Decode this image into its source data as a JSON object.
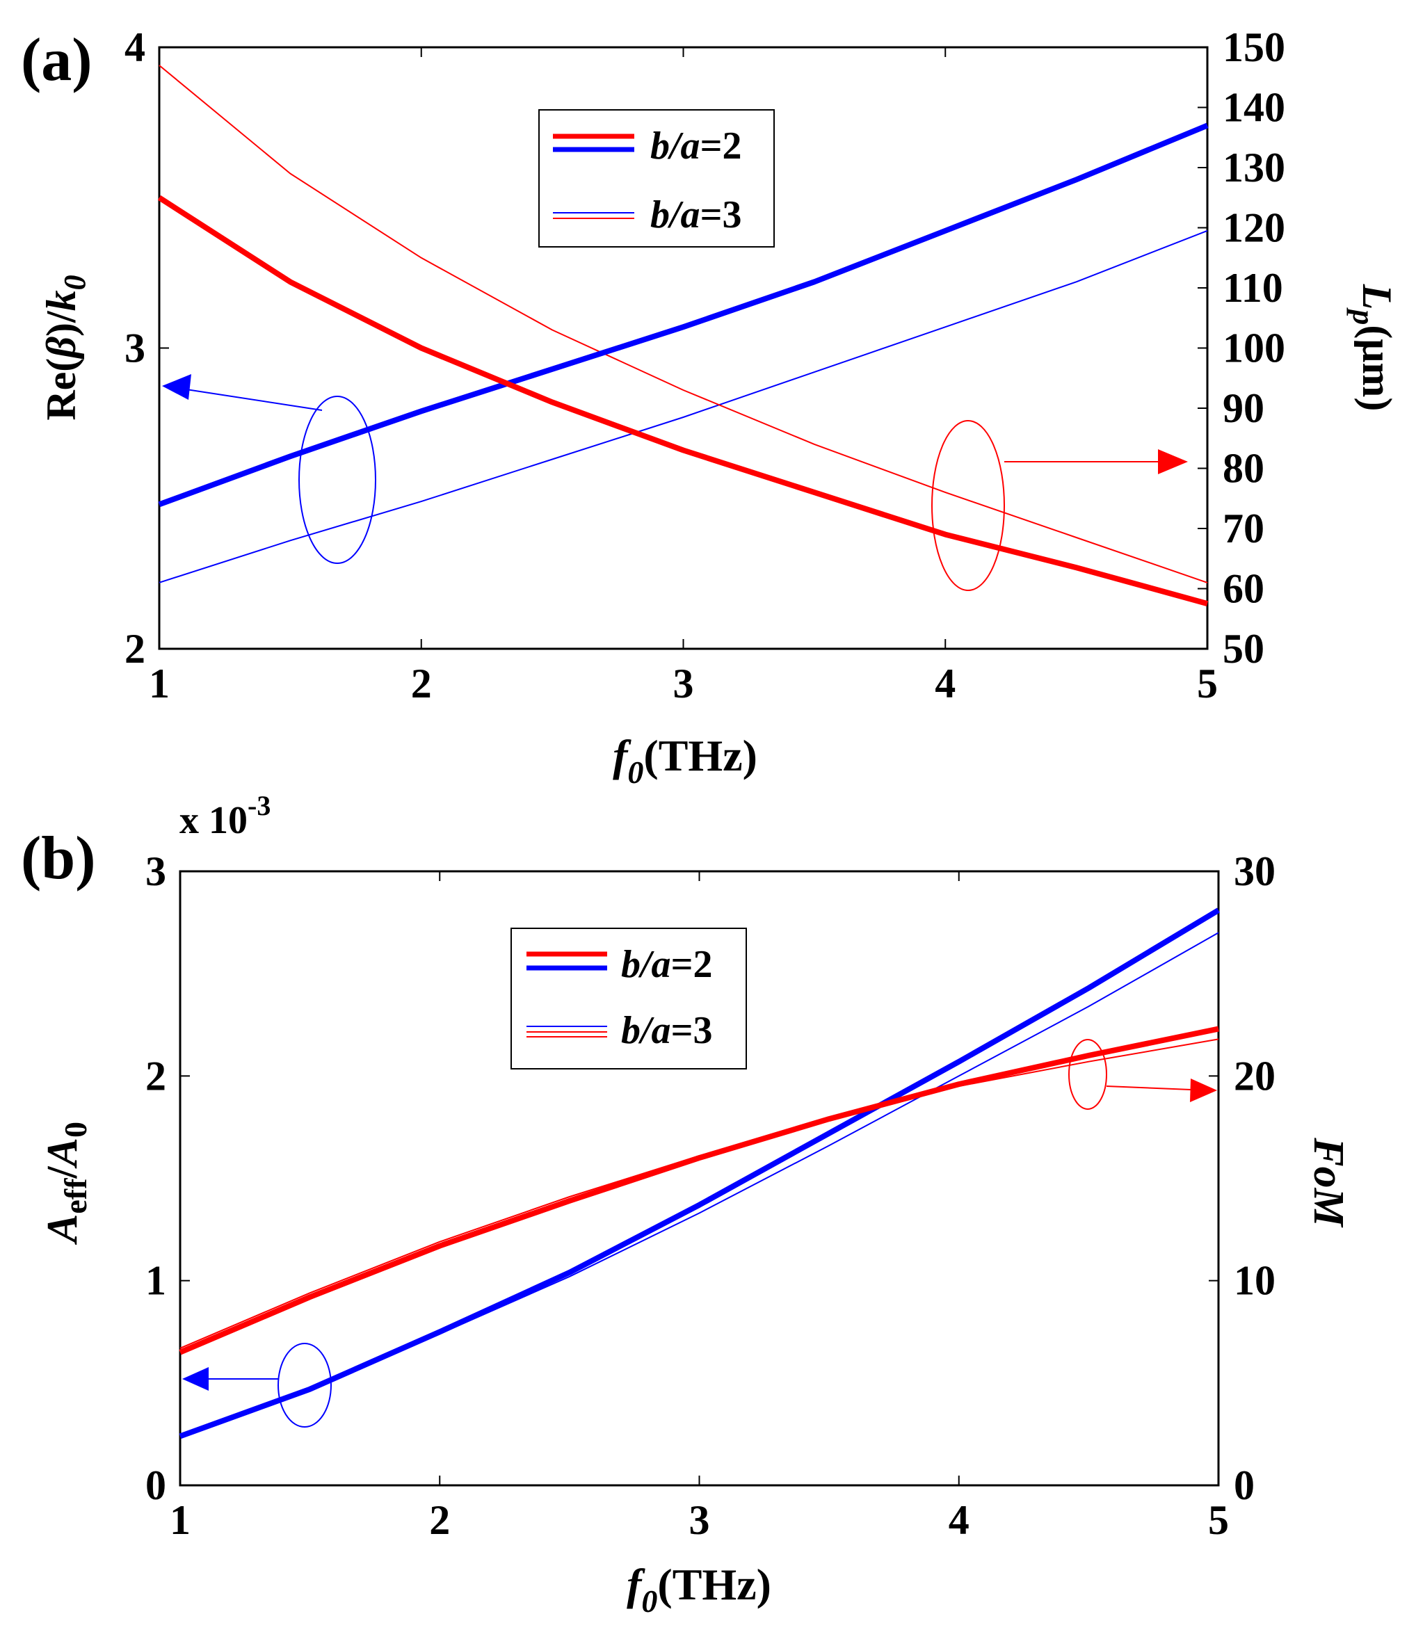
{
  "colors": {
    "red": "#ff0000",
    "blue": "#0000ff",
    "axis": "#000000"
  },
  "chart_data": [
    {
      "type": "line",
      "panel_label": "(a)",
      "title": "",
      "x": [
        1,
        1.5,
        2,
        2.5,
        3,
        3.5,
        4,
        4.5,
        5
      ],
      "xlim": [
        1,
        5
      ],
      "xticks": [
        1,
        2,
        3,
        4,
        5
      ],
      "xlabel": {
        "main": "f",
        "sub": "0",
        "rest": "(THz)"
      },
      "ylim_left": [
        2,
        4
      ],
      "yticks_left": [
        2,
        3,
        4
      ],
      "ylabel_left": "Re(β)/k0",
      "ylim_right": [
        50,
        150
      ],
      "yticks_right": [
        50,
        60,
        70,
        80,
        90,
        100,
        110,
        120,
        130,
        140,
        150
      ],
      "ylabel_right": "Lp(μm)",
      "legend": {
        "position": "upper-center",
        "entries": [
          "b/a=2",
          "b/a=3"
        ]
      },
      "series": [
        {
          "name": "Re(β)/k0, b/a=2",
          "axis": "left",
          "color": "blue",
          "width": "thick",
          "values": [
            2.48,
            2.64,
            2.79,
            2.93,
            3.07,
            3.22,
            3.39,
            3.56,
            3.74
          ]
        },
        {
          "name": "Re(β)/k0, b/a=3",
          "axis": "left",
          "color": "blue",
          "width": "thin",
          "values": [
            2.22,
            2.36,
            2.49,
            2.63,
            2.77,
            2.92,
            3.07,
            3.22,
            3.39
          ]
        },
        {
          "name": "Lp, b/a=2",
          "axis": "right",
          "color": "red",
          "width": "thick",
          "values": [
            125,
            111,
            100,
            91,
            83,
            76,
            69,
            63.5,
            57.5
          ]
        },
        {
          "name": "Lp, b/a=3",
          "axis": "right",
          "color": "red",
          "width": "thin",
          "values": [
            147,
            129,
            115,
            103,
            93,
            84,
            76,
            68.5,
            61
          ]
        }
      ],
      "annotations": [
        {
          "kind": "ellipse-arrow",
          "color": "blue",
          "points_to": "left axis"
        },
        {
          "kind": "ellipse-arrow",
          "color": "red",
          "points_to": "right axis"
        }
      ]
    },
    {
      "type": "line",
      "panel_label": "(b)",
      "title": "",
      "x": [
        1,
        1.5,
        2,
        2.5,
        3,
        3.5,
        4,
        4.5,
        5
      ],
      "xlim": [
        1,
        5
      ],
      "xticks": [
        1,
        2,
        3,
        4,
        5
      ],
      "xlabel": {
        "main": "f",
        "sub": "0",
        "rest": "(THz)"
      },
      "ylim_left": [
        0,
        3
      ],
      "yticks_left": [
        0,
        1,
        2,
        3
      ],
      "y_multiplier": "x 10-3",
      "ylabel_left": "Aeff/A0",
      "ylim_right": [
        0,
        30
      ],
      "yticks_right": [
        0,
        10,
        20,
        30
      ],
      "ylabel_right": "FoM",
      "legend": {
        "position": "upper-center",
        "entries": [
          "b/a=2",
          "b/a=3"
        ]
      },
      "series": [
        {
          "name": "Aeff/A0, b/a=2",
          "axis": "left",
          "color": "blue",
          "width": "thick",
          "values": [
            0.24,
            0.47,
            0.75,
            1.04,
            1.37,
            1.72,
            2.07,
            2.43,
            2.81
          ]
        },
        {
          "name": "Aeff/A0, b/a=3",
          "axis": "left",
          "color": "blue",
          "width": "thin",
          "values": [
            0.24,
            0.47,
            0.74,
            1.02,
            1.33,
            1.66,
            2.0,
            2.34,
            2.7
          ]
        },
        {
          "name": "FoM, b/a=2",
          "axis": "right",
          "color": "red",
          "width": "thick",
          "values": [
            6.5,
            9.2,
            11.7,
            13.9,
            16.0,
            17.9,
            19.6,
            21.0,
            22.3
          ]
        },
        {
          "name": "FoM, b/a=3",
          "axis": "right",
          "color": "red",
          "width": "thin",
          "values": [
            6.7,
            9.4,
            11.9,
            14.1,
            16.1,
            17.9,
            19.5,
            20.7,
            21.8
          ]
        }
      ],
      "annotations": [
        {
          "kind": "ellipse-arrow",
          "color": "blue",
          "points_to": "left axis"
        },
        {
          "kind": "ellipse-arrow",
          "color": "red",
          "points_to": "right axis"
        }
      ]
    }
  ]
}
